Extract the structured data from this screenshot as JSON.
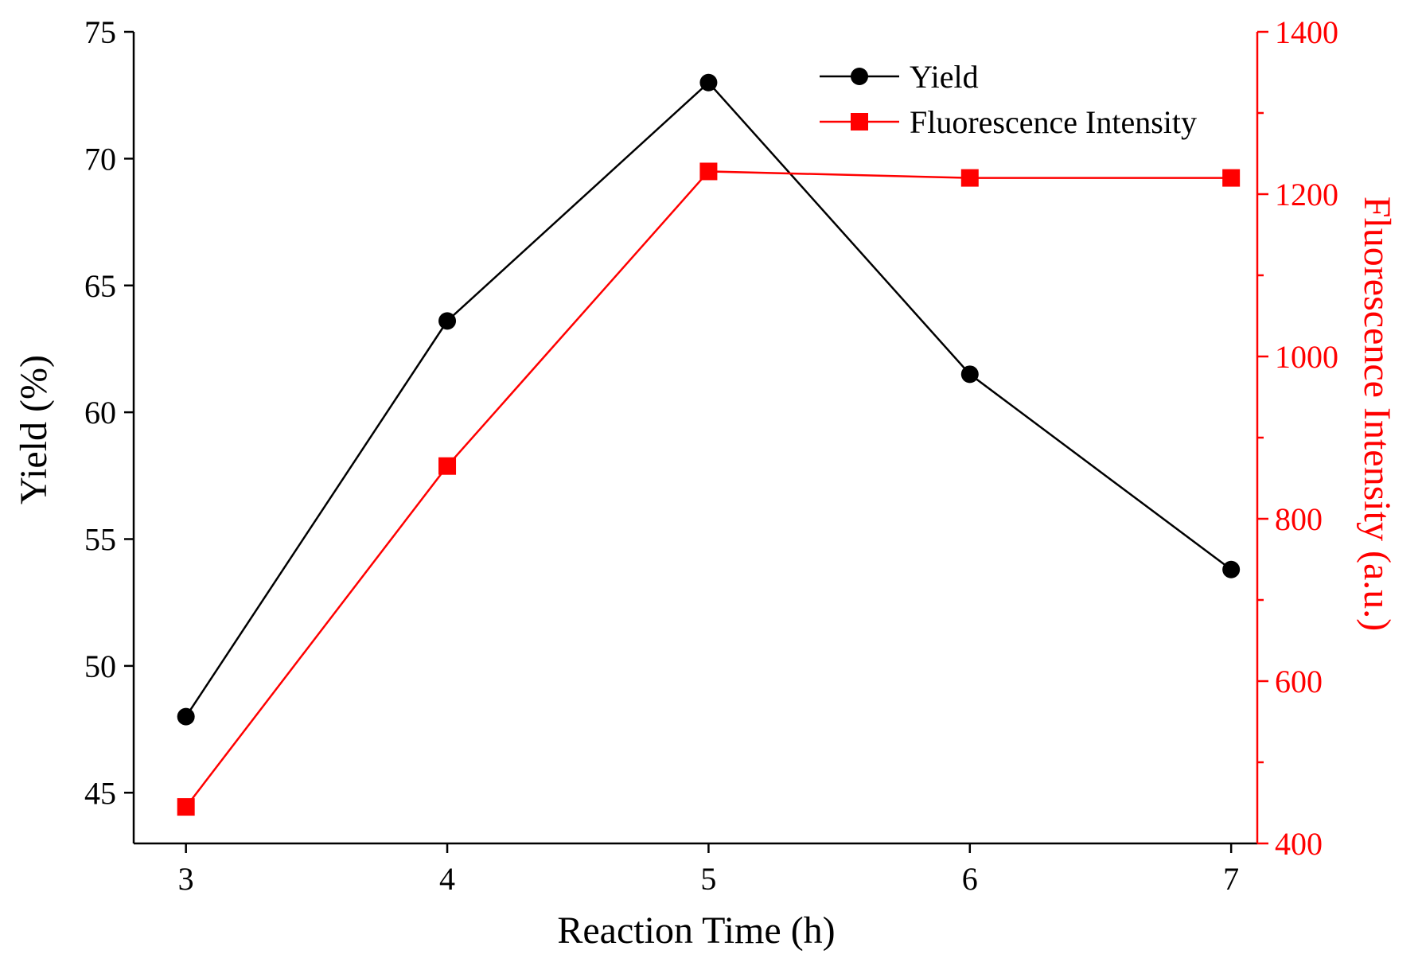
{
  "chart_data": {
    "type": "line",
    "title": "",
    "xlabel": "Reaction Time (h)",
    "ylabel_left": "Yield (%)",
    "ylabel_right": "Fluorescence Intensity (a.u.)",
    "x": [
      3,
      4,
      5,
      6,
      7
    ],
    "xlim": [
      2.8,
      7.1
    ],
    "xticks": [
      3,
      4,
      5,
      6,
      7
    ],
    "ylim_left": [
      43,
      75
    ],
    "yticks_left": [
      45,
      50,
      55,
      60,
      65,
      70,
      75
    ],
    "ylim_right": [
      400,
      1400
    ],
    "yticks_right": [
      400,
      600,
      800,
      1000,
      1200,
      1400
    ],
    "yticks_right_minor": [
      500,
      700,
      900,
      1100,
      1300
    ],
    "legend_position": "top-right",
    "series": [
      {
        "name": "Yield",
        "axis": "left",
        "marker": "circle",
        "color": "#000000",
        "values": [
          48.0,
          63.6,
          73.0,
          61.5,
          53.8
        ]
      },
      {
        "name": "Fluorescence Intensity",
        "axis": "right",
        "marker": "square",
        "color": "#ff0000",
        "values": [
          445,
          865,
          1228,
          1220,
          1220
        ]
      }
    ]
  }
}
